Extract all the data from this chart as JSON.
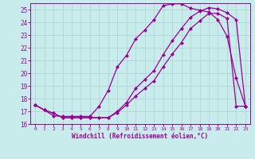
{
  "xlabel": "Windchill (Refroidissement éolien,°C)",
  "bg_color": "#c8ecec",
  "line_color": "#990099",
  "grid_color": "#b0d0d0",
  "xlim": [
    -0.5,
    23.5
  ],
  "ylim": [
    16,
    25.5
  ],
  "xticks": [
    0,
    1,
    2,
    3,
    4,
    5,
    6,
    7,
    8,
    9,
    10,
    11,
    12,
    13,
    14,
    15,
    16,
    17,
    18,
    19,
    20,
    21,
    22,
    23
  ],
  "yticks": [
    16,
    17,
    18,
    19,
    20,
    21,
    22,
    23,
    24,
    25
  ],
  "curve1_x": [
    0,
    1,
    2,
    3,
    4,
    5,
    6,
    7,
    8,
    9,
    10,
    11,
    12,
    13,
    14,
    15,
    16,
    17,
    18,
    19,
    20,
    21,
    22,
    23
  ],
  "curve1_y": [
    17.5,
    17.1,
    16.65,
    16.6,
    16.6,
    16.6,
    16.6,
    17.4,
    18.65,
    20.5,
    21.4,
    22.7,
    23.4,
    24.2,
    25.3,
    25.45,
    25.45,
    25.1,
    24.95,
    24.8,
    24.2,
    22.9,
    19.6,
    17.4
  ],
  "curve2_x": [
    0,
    1,
    2,
    3,
    4,
    5,
    6,
    7,
    8,
    9,
    10,
    11,
    12,
    13,
    14,
    15,
    16,
    17,
    18,
    19,
    20,
    21,
    22,
    23
  ],
  "curve2_y": [
    17.5,
    17.1,
    16.85,
    16.5,
    16.5,
    16.5,
    16.5,
    16.5,
    16.5,
    17.0,
    17.7,
    18.8,
    19.5,
    20.2,
    21.45,
    22.55,
    23.5,
    24.4,
    24.85,
    25.15,
    25.05,
    24.75,
    24.2,
    17.4
  ],
  "curve3_x": [
    0,
    1,
    2,
    3,
    4,
    5,
    6,
    7,
    8,
    9,
    10,
    11,
    12,
    13,
    14,
    15,
    16,
    17,
    18,
    19,
    20,
    21,
    22,
    23
  ],
  "curve3_y": [
    17.5,
    17.1,
    16.85,
    16.5,
    16.5,
    16.5,
    16.5,
    16.5,
    16.5,
    16.9,
    17.5,
    18.2,
    18.8,
    19.4,
    20.5,
    21.5,
    22.4,
    23.5,
    24.1,
    24.7,
    24.7,
    24.3,
    17.4,
    17.4
  ],
  "marker": "D",
  "markersize": 2.5,
  "linewidth": 0.9
}
